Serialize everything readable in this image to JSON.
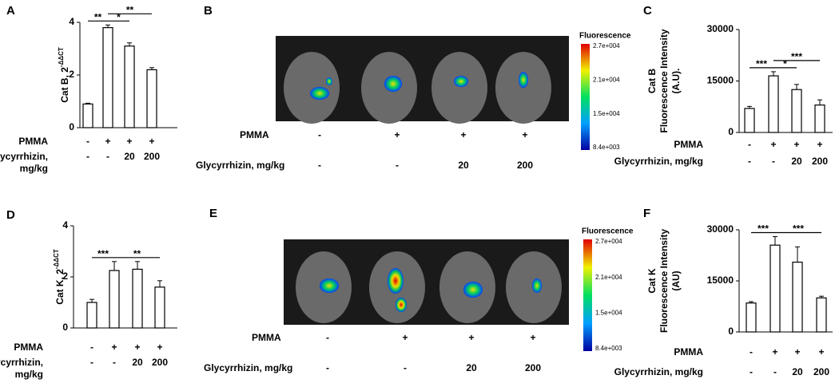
{
  "chart_data": [
    {
      "type": "bar",
      "panel": "A",
      "ylabel": [
        "Cat B, 2"
      ],
      "ylabel_sup": "-ΔΔCT",
      "ylim": [
        0,
        4
      ],
      "yticks": [
        0,
        2,
        4
      ],
      "values": [
        0.9,
        3.8,
        3.1,
        2.2
      ],
      "errors": [
        0.03,
        0.1,
        0.12,
        0.08
      ],
      "color": "#ffffff",
      "treatments": [
        {
          "label": [
            "PMMA"
          ],
          "values": [
            "-",
            "+",
            "+",
            "+"
          ]
        },
        {
          "label": [
            "Glycyrrhizin,",
            "mg/kg"
          ],
          "values": [
            "-",
            "-",
            "20",
            "200"
          ]
        }
      ],
      "significance": [
        {
          "from": 0,
          "to": 1,
          "label": "**"
        },
        {
          "from": 1,
          "to": 2,
          "label": "*"
        },
        {
          "from": 1,
          "to": 3,
          "label": "**"
        }
      ]
    },
    {
      "type": "bar",
      "panel": "C",
      "ylabel": [
        "Cat B",
        "Fluorescence Intensity",
        "(A.U)."
      ],
      "ylim": [
        0,
        30000
      ],
      "yticks": [
        0,
        15000,
        30000
      ],
      "values": [
        7000,
        16500,
        12500,
        8000
      ],
      "errors": [
        600,
        1200,
        1500,
        1500
      ],
      "color": "#ffffff",
      "treatments": [
        {
          "label": [
            "PMMA"
          ],
          "values": [
            "-",
            "+",
            "+",
            "+"
          ]
        },
        {
          "label": [
            "Glycyrrhizin, mg/kg"
          ],
          "values": [
            "-",
            "-",
            "20",
            "200"
          ]
        }
      ],
      "significance": [
        {
          "from": 0,
          "to": 1,
          "label": "***"
        },
        {
          "from": 1,
          "to": 2,
          "label": "*"
        },
        {
          "from": 1,
          "to": 3,
          "label": "***"
        }
      ]
    },
    {
      "type": "bar",
      "panel": "D",
      "ylabel": [
        "Cat K, 2"
      ],
      "ylabel_sup": "-ΔΔCT",
      "ylim": [
        0,
        4
      ],
      "yticks": [
        0,
        2,
        4
      ],
      "values": [
        1.0,
        2.25,
        2.3,
        1.6
      ],
      "errors": [
        0.12,
        0.35,
        0.3,
        0.25
      ],
      "color": "#ffffff",
      "treatments": [
        {
          "label": [
            "PMMA"
          ],
          "values": [
            "-",
            "+",
            "+",
            "+"
          ]
        },
        {
          "label": [
            "Glycyrrhizin,",
            "mg/kg"
          ],
          "values": [
            "-",
            "-",
            "20",
            "200"
          ]
        }
      ],
      "significance": [
        {
          "from": 0,
          "to": 1,
          "label": "***"
        },
        {
          "from": 1,
          "to": 3,
          "label": "**"
        }
      ]
    },
    {
      "type": "bar",
      "panel": "F",
      "ylabel": [
        "Cat K",
        "Fluorescence Intensity",
        "(AU)"
      ],
      "ylim": [
        0,
        30000
      ],
      "yticks": [
        0,
        15000,
        30000
      ],
      "values": [
        8500,
        25500,
        20500,
        10000
      ],
      "errors": [
        400,
        2500,
        4500,
        500
      ],
      "color": "#ffffff",
      "treatments": [
        {
          "label": [
            "PMMA"
          ],
          "values": [
            "-",
            "+",
            "+",
            "+"
          ]
        },
        {
          "label": [
            "Glycyrrhizin, mg/kg"
          ],
          "values": [
            "-",
            "-",
            "20",
            "200"
          ]
        }
      ],
      "significance": [
        {
          "from": 0,
          "to": 1,
          "label": "***"
        },
        {
          "from": 1,
          "to": 3,
          "label": "***"
        }
      ]
    }
  ],
  "image_panels": [
    {
      "panel": "B",
      "colorbar_title": "Fluorescence",
      "colorbar_ticks": [
        "2.7e+004",
        "2.1e+004",
        "1.5e+004",
        "8.4e+003"
      ],
      "treatments": [
        {
          "label": "PMMA",
          "values": [
            "-",
            "+",
            "+",
            "+"
          ]
        },
        {
          "label": "Glycyrrhizin, mg/kg",
          "values": [
            "-",
            "-",
            "20",
            "200"
          ]
        }
      ]
    },
    {
      "panel": "E",
      "colorbar_title": "Fluorescence",
      "colorbar_ticks": [
        "2.7e+004",
        "2.1e+004",
        "1.5e+004",
        "8.4e+003"
      ],
      "treatments": [
        {
          "label": "PMMA",
          "values": [
            "-",
            "+",
            "+",
            "+"
          ]
        },
        {
          "label": "Glycyrrhizin, mg/kg",
          "values": [
            "-",
            "-",
            "20",
            "200"
          ]
        }
      ]
    }
  ]
}
